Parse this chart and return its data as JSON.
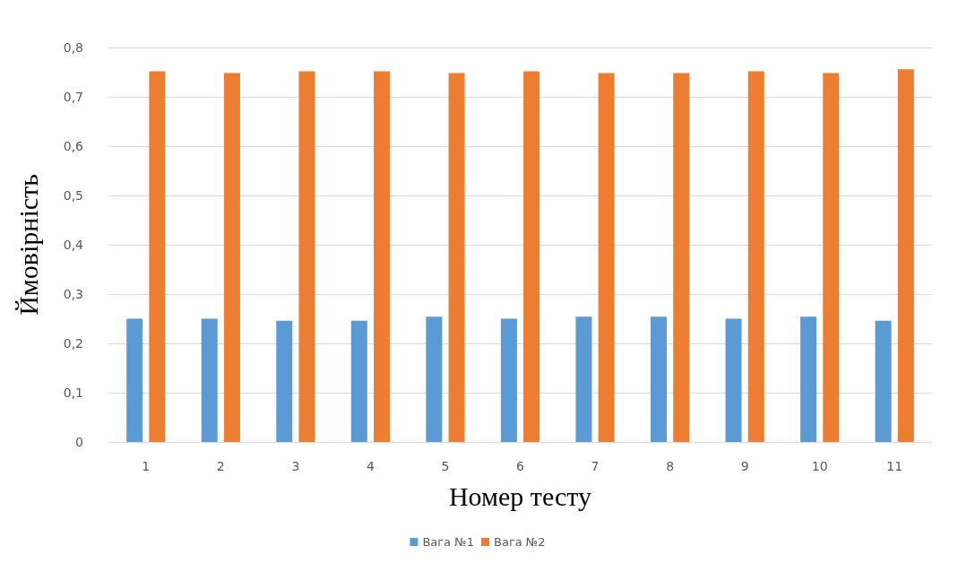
{
  "chart_data": {
    "type": "bar",
    "xlabel": "Номер тесту",
    "ylabel": "Ймовірність",
    "categories": [
      "1",
      "2",
      "3",
      "4",
      "5",
      "6",
      "7",
      "8",
      "9",
      "10",
      "11"
    ],
    "series": [
      {
        "name": "Вага №1",
        "color": "#5b9bd5",
        "values": [
          0.25,
          0.25,
          0.246,
          0.246,
          0.254,
          0.25,
          0.254,
          0.254,
          0.25,
          0.254,
          0.246
        ]
      },
      {
        "name": "Вага №2",
        "color": "#ed7d31",
        "values": [
          0.752,
          0.748,
          0.752,
          0.752,
          0.748,
          0.752,
          0.748,
          0.748,
          0.752,
          0.748,
          0.756
        ]
      }
    ],
    "ylim": [
      0,
      0.8
    ],
    "yticks": [
      0,
      {
        "value": 0.1,
        "label": "0,1"
      },
      {
        "value": 0.2,
        "label": "0,2"
      },
      {
        "value": 0.3,
        "label": "0,3"
      },
      {
        "value": 0.4,
        "label": "0,4"
      },
      {
        "value": 0.5,
        "label": "0,5"
      },
      {
        "value": 0.6,
        "label": "0,6"
      },
      {
        "value": 0.7,
        "label": "0,7"
      },
      {
        "value": 0.8,
        "label": "0,8"
      }
    ],
    "grid": "y",
    "legend": "bottom"
  }
}
